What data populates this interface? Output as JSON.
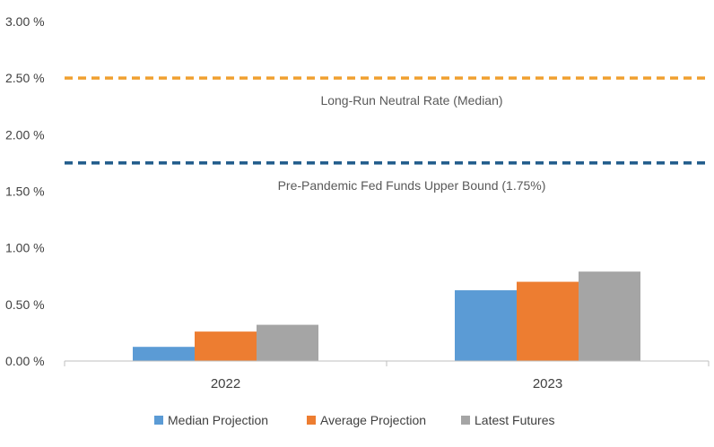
{
  "chart_data": {
    "type": "bar",
    "title": "",
    "xlabel": "",
    "ylabel": "",
    "categories": [
      "2022",
      "2023"
    ],
    "series": [
      {
        "name": "Median Projection",
        "values": [
          0.125,
          0.625
        ],
        "color": "#5B9BD5"
      },
      {
        "name": "Average Projection",
        "values": [
          0.26,
          0.7
        ],
        "color": "#ED7D31"
      },
      {
        "name": "Latest Futures",
        "values": [
          0.32,
          0.79
        ],
        "color": "#A5A5A5"
      }
    ],
    "ylim": [
      0,
      3.0
    ],
    "yticks": [
      0,
      0.5,
      1.0,
      1.5,
      2.0,
      2.5,
      3.0
    ],
    "ytick_labels": [
      "0.00 %",
      "0.50 %",
      "1.00 %",
      "1.50 %",
      "2.00 %",
      "2.50 %",
      "3.00 %"
    ],
    "reference_lines": [
      {
        "label": "Long-Run Neutral Rate (Median)",
        "value": 2.5,
        "color": "#F0A030",
        "style": "dashed"
      },
      {
        "label": "Pre-Pandemic Fed Funds Upper Bound (1.75%)",
        "value": 1.75,
        "color": "#1F5A8A",
        "style": "dashed"
      }
    ],
    "grid": false,
    "legend_position": "bottom"
  }
}
